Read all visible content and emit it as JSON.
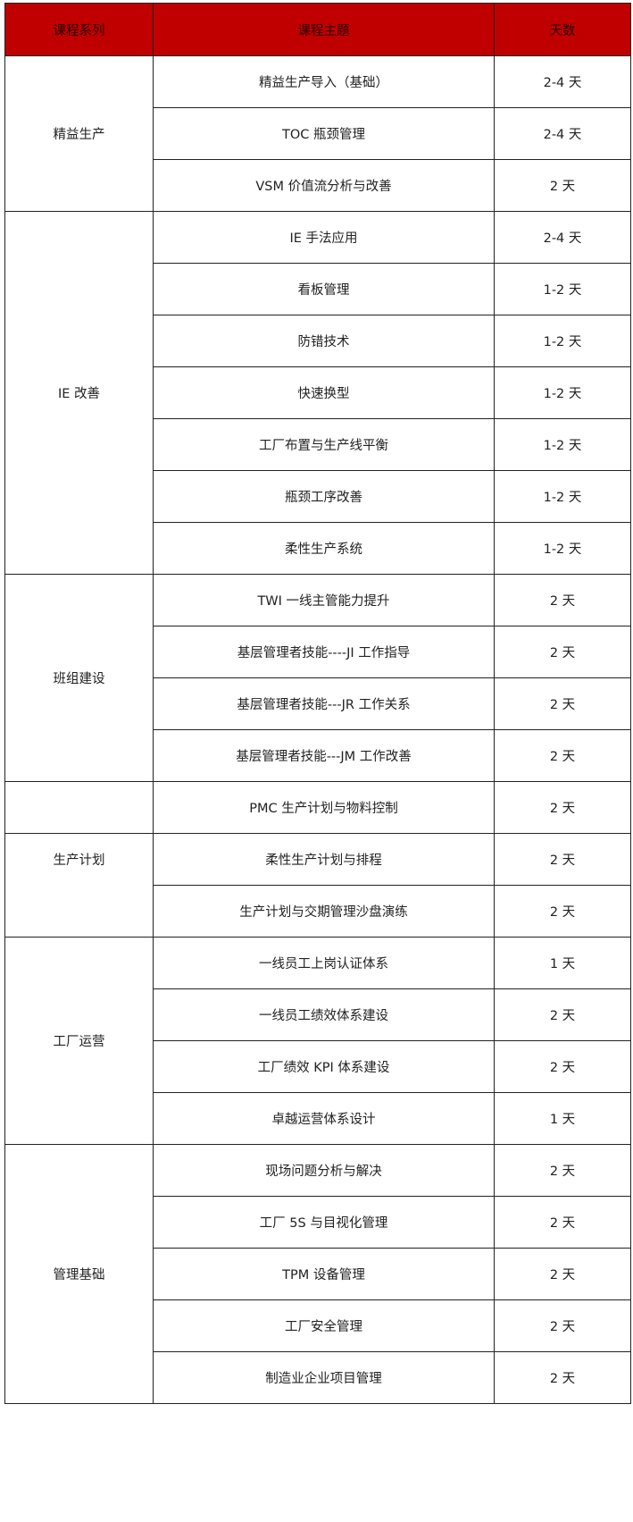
{
  "headers": [
    "课程系列",
    "课程主题",
    "天数"
  ],
  "groups": [
    {
      "series": "精益生产",
      "rows": [
        [
          "精益生产导入（基础）",
          "2-4 天"
        ],
        [
          "TOC 瓶颈管理",
          "2-4 天"
        ],
        [
          "VSM 价值流分析与改善",
          "2 天"
        ]
      ]
    },
    {
      "series": "IE 改善",
      "rows": [
        [
          "IE 手法应用",
          "2-4 天"
        ],
        [
          "看板管理",
          "1-2 天"
        ],
        [
          "防错技术",
          "1-2 天"
        ],
        [
          "快速换型",
          "1-2 天"
        ],
        [
          "工厂布置与生产线平衡",
          "1-2 天"
        ],
        [
          "瓶颈工序改善",
          "1-2 天"
        ],
        [
          "柔性生产系统",
          "1-2 天"
        ]
      ]
    },
    {
      "series": "班组建设",
      "rows": [
        [
          "TWI 一线主管能力提升",
          "2 天"
        ],
        [
          "基层管理者技能----JI 工作指导",
          "2 天"
        ],
        [
          "基层管理者技能---JR 工作关系",
          "2 天"
        ],
        [
          "基层管理者技能---JM 工作改善",
          "2 天"
        ]
      ]
    },
    {
      "series": "",
      "rows": [
        [
          "PMC 生产计划与物料控制",
          "2 天"
        ]
      ]
    },
    {
      "series": "生产计划",
      "top": true,
      "rows": [
        [
          "柔性生产计划与排程",
          "2 天"
        ],
        [
          "生产计划与交期管理沙盘演练",
          "2 天"
        ]
      ]
    },
    {
      "series": "工厂运营",
      "rows": [
        [
          "一线员工上岗认证体系",
          "1 天"
        ],
        [
          "一线员工绩效体系建设",
          "2 天"
        ],
        [
          "工厂绩效 KPI 体系建设",
          "2 天"
        ],
        [
          "卓越运营体系设计",
          "1 天"
        ]
      ]
    },
    {
      "series": "管理基础",
      "rows": [
        [
          "现场问题分析与解决",
          "2 天"
        ],
        [
          "工厂 5S 与目视化管理",
          "2 天"
        ],
        [
          "TPM 设备管理",
          "2 天"
        ],
        [
          "工厂安全管理",
          "2 天"
        ],
        [
          "制造业企业项目管理",
          "2 天"
        ]
      ]
    }
  ],
  "colors": {
    "header_bg": "#c00000",
    "border": "#222222"
  }
}
